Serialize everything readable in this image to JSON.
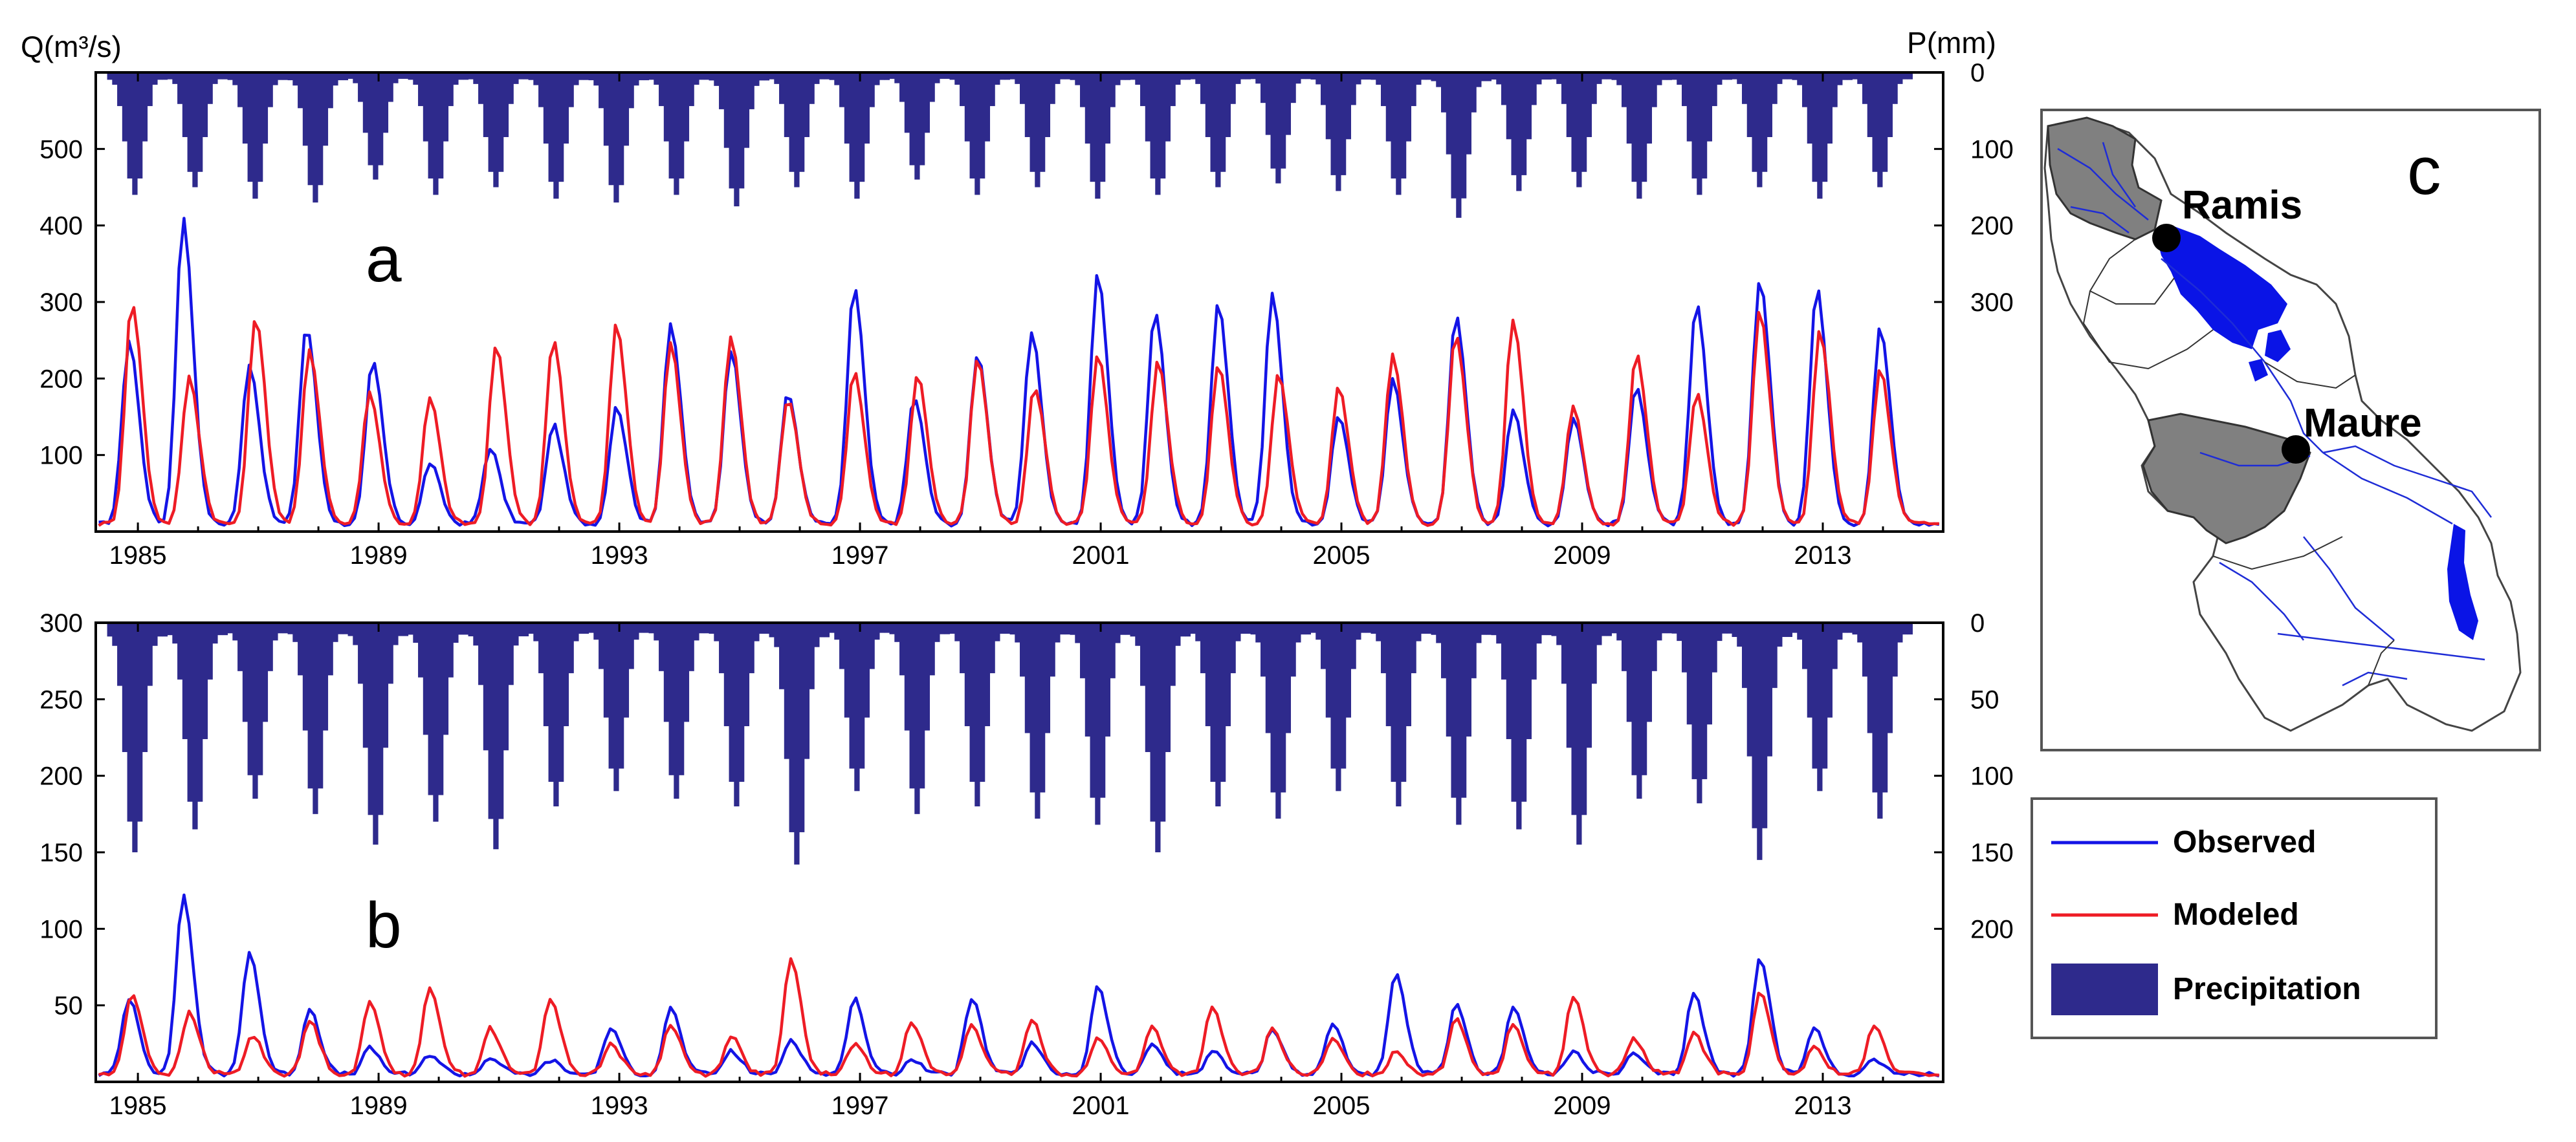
{
  "figure": {
    "left_axis_label": "Q(m³/s)",
    "right_axis_label": "P(mm)",
    "colors": {
      "observed": "#1414e6",
      "modeled": "#ee1c25",
      "precipitation": "#2e2a8c",
      "basin_gray": "#808080",
      "lake_blue": "#0a14e6"
    }
  },
  "chart_data": [
    {
      "type": "line",
      "panel_label": "a",
      "x_ticks": [
        "1985",
        "1989",
        "1993",
        "1997",
        "2001",
        "2005",
        "2009",
        "2013"
      ],
      "x_range": [
        1984.3,
        2015.0
      ],
      "y_left_ticks": [
        100,
        200,
        300,
        400,
        500
      ],
      "y_left_range": [
        0,
        600
      ],
      "y_right_ticks": [
        0,
        100,
        200,
        300
      ],
      "y_right_range": [
        0,
        600
      ],
      "grid": false,
      "series": [
        {
          "name": "Observed",
          "kind": "line",
          "color": "#1414e6",
          "peaks": [
            [
              1984.85,
              250
            ],
            [
              1985.75,
              410
            ],
            [
              1986.85,
              220
            ],
            [
              1987.8,
              268
            ],
            [
              1988.9,
              222
            ],
            [
              1989.85,
              90
            ],
            [
              1990.85,
              110
            ],
            [
              1991.9,
              140
            ],
            [
              1992.95,
              165
            ],
            [
              1993.85,
              272
            ],
            [
              1994.85,
              238
            ],
            [
              1995.8,
              180
            ],
            [
              1996.9,
              320
            ],
            [
              1997.9,
              175
            ],
            [
              1998.95,
              232
            ],
            [
              1999.85,
              262
            ],
            [
              2000.95,
              338
            ],
            [
              2001.9,
              288
            ],
            [
              2002.95,
              300
            ],
            [
              2003.85,
              310
            ],
            [
              2004.95,
              150
            ],
            [
              2005.85,
              200
            ],
            [
              2006.9,
              282
            ],
            [
              2007.85,
              162
            ],
            [
              2008.85,
              150
            ],
            [
              2009.9,
              192
            ],
            [
              2010.9,
              298
            ],
            [
              2011.95,
              330
            ],
            [
              2012.9,
              318
            ],
            [
              2013.95,
              266
            ]
          ]
        },
        {
          "name": "Modeled",
          "kind": "line",
          "color": "#ee1c25",
          "peaks": [
            [
              1984.9,
              300
            ],
            [
              1985.85,
              202
            ],
            [
              1986.95,
              280
            ],
            [
              1987.85,
              238
            ],
            [
              1988.85,
              182
            ],
            [
              1989.85,
              175
            ],
            [
              1990.95,
              242
            ],
            [
              1991.9,
              252
            ],
            [
              1992.95,
              270
            ],
            [
              1993.85,
              245
            ],
            [
              1994.85,
              255
            ],
            [
              1995.8,
              172
            ],
            [
              1996.9,
              210
            ],
            [
              1997.95,
              205
            ],
            [
              1998.95,
              225
            ],
            [
              1999.9,
              190
            ],
            [
              2000.95,
              230
            ],
            [
              2001.95,
              222
            ],
            [
              2002.95,
              218
            ],
            [
              2003.95,
              205
            ],
            [
              2004.95,
              188
            ],
            [
              2005.85,
              232
            ],
            [
              2006.9,
              258
            ],
            [
              2007.85,
              278
            ],
            [
              2008.85,
              162
            ],
            [
              2009.9,
              232
            ],
            [
              2010.9,
              182
            ],
            [
              2011.95,
              288
            ],
            [
              2012.95,
              262
            ],
            [
              2013.95,
              212
            ]
          ]
        },
        {
          "name": "Precipitation",
          "kind": "inverted-bar",
          "axis": "right",
          "color": "#2e2a8c",
          "peaks": [
            [
              1984.95,
              160
            ],
            [
              1985.95,
              150
            ],
            [
              1986.95,
              165
            ],
            [
              1987.95,
              170
            ],
            [
              1988.95,
              140
            ],
            [
              1989.95,
              160
            ],
            [
              1990.95,
              150
            ],
            [
              1991.95,
              165
            ],
            [
              1992.95,
              170
            ],
            [
              1993.95,
              160
            ],
            [
              1994.95,
              175
            ],
            [
              1995.95,
              150
            ],
            [
              1996.95,
              165
            ],
            [
              1997.95,
              140
            ],
            [
              1998.95,
              160
            ],
            [
              1999.95,
              150
            ],
            [
              2000.95,
              165
            ],
            [
              2001.95,
              160
            ],
            [
              2002.95,
              150
            ],
            [
              2003.95,
              145
            ],
            [
              2004.95,
              155
            ],
            [
              2005.95,
              160
            ],
            [
              2006.95,
              190
            ],
            [
              2007.95,
              155
            ],
            [
              2008.95,
              150
            ],
            [
              2009.95,
              165
            ],
            [
              2010.95,
              160
            ],
            [
              2011.95,
              150
            ],
            [
              2012.95,
              165
            ],
            [
              2013.95,
              150
            ]
          ]
        }
      ]
    },
    {
      "type": "line",
      "panel_label": "b",
      "x_ticks": [
        "1985",
        "1989",
        "1993",
        "1997",
        "2001",
        "2005",
        "2009",
        "2013"
      ],
      "x_range": [
        1984.3,
        2015.0
      ],
      "y_left_ticks": [
        50,
        100,
        150,
        200,
        250,
        300
      ],
      "y_left_range": [
        0,
        300
      ],
      "y_right_ticks": [
        0,
        50,
        100,
        150,
        200
      ],
      "y_right_range": [
        0,
        300
      ],
      "grid": false,
      "series": [
        {
          "name": "Observed",
          "kind": "line",
          "color": "#1414e6",
          "peaks": [
            [
              1984.85,
              55
            ],
            [
              1985.75,
              122
            ],
            [
              1986.85,
              85
            ],
            [
              1987.85,
              48
            ],
            [
              1988.85,
              22
            ],
            [
              1989.85,
              18
            ],
            [
              1990.85,
              16
            ],
            [
              1991.85,
              14
            ],
            [
              1992.85,
              35
            ],
            [
              1993.85,
              48
            ],
            [
              1994.85,
              20
            ],
            [
              1995.85,
              28
            ],
            [
              1996.9,
              55
            ],
            [
              1997.85,
              15
            ],
            [
              1998.85,
              55
            ],
            [
              1999.85,
              25
            ],
            [
              2000.95,
              62
            ],
            [
              2001.85,
              25
            ],
            [
              2002.85,
              20
            ],
            [
              2003.85,
              35
            ],
            [
              2004.85,
              38
            ],
            [
              2005.9,
              70
            ],
            [
              2006.9,
              50
            ],
            [
              2007.85,
              50
            ],
            [
              2008.85,
              20
            ],
            [
              2009.85,
              18
            ],
            [
              2010.85,
              58
            ],
            [
              2011.95,
              82
            ],
            [
              2012.85,
              35
            ],
            [
              2013.85,
              15
            ]
          ]
        },
        {
          "name": "Modeled",
          "kind": "line",
          "color": "#ee1c25",
          "peaks": [
            [
              1984.9,
              58
            ],
            [
              1985.85,
              45
            ],
            [
              1986.9,
              30
            ],
            [
              1987.85,
              40
            ],
            [
              1988.85,
              52
            ],
            [
              1989.85,
              62
            ],
            [
              1990.85,
              35
            ],
            [
              1991.85,
              55
            ],
            [
              1992.85,
              25
            ],
            [
              1993.85,
              38
            ],
            [
              1994.85,
              30
            ],
            [
              1995.85,
              80
            ],
            [
              1996.9,
              25
            ],
            [
              1997.85,
              40
            ],
            [
              1998.85,
              38
            ],
            [
              1999.85,
              40
            ],
            [
              2000.95,
              28
            ],
            [
              2001.85,
              36
            ],
            [
              2002.85,
              48
            ],
            [
              2003.85,
              35
            ],
            [
              2004.85,
              28
            ],
            [
              2005.9,
              20
            ],
            [
              2006.9,
              42
            ],
            [
              2007.85,
              38
            ],
            [
              2008.85,
              56
            ],
            [
              2009.85,
              28
            ],
            [
              2010.85,
              32
            ],
            [
              2011.95,
              58
            ],
            [
              2012.85,
              22
            ],
            [
              2013.85,
              36
            ]
          ]
        },
        {
          "name": "Precipitation",
          "kind": "inverted-bar",
          "axis": "right",
          "color": "#2e2a8c",
          "peaks": [
            [
              1984.95,
              150
            ],
            [
              1985.95,
              135
            ],
            [
              1986.95,
              115
            ],
            [
              1987.95,
              125
            ],
            [
              1988.95,
              145
            ],
            [
              1989.95,
              130
            ],
            [
              1990.95,
              148
            ],
            [
              1991.95,
              120
            ],
            [
              1992.95,
              110
            ],
            [
              1993.95,
              115
            ],
            [
              1994.95,
              120
            ],
            [
              1995.95,
              158
            ],
            [
              1996.95,
              110
            ],
            [
              1997.95,
              125
            ],
            [
              1998.95,
              120
            ],
            [
              1999.95,
              128
            ],
            [
              2000.95,
              132
            ],
            [
              2001.95,
              150
            ],
            [
              2002.95,
              120
            ],
            [
              2003.95,
              128
            ],
            [
              2004.95,
              110
            ],
            [
              2005.95,
              120
            ],
            [
              2006.95,
              132
            ],
            [
              2007.95,
              135
            ],
            [
              2008.95,
              145
            ],
            [
              2009.95,
              115
            ],
            [
              2010.95,
              118
            ],
            [
              2011.95,
              155
            ],
            [
              2012.95,
              110
            ],
            [
              2013.95,
              128
            ]
          ]
        }
      ]
    }
  ],
  "map": {
    "panel_label": "c",
    "stations": [
      "Ramis",
      "Maure"
    ]
  },
  "legend": {
    "items": [
      {
        "label": "Observed",
        "kind": "line",
        "color": "#1414e6"
      },
      {
        "label": "Modeled",
        "kind": "line",
        "color": "#ee1c25"
      },
      {
        "label": "Precipitation",
        "kind": "box",
        "color": "#2e2a8c"
      }
    ]
  }
}
